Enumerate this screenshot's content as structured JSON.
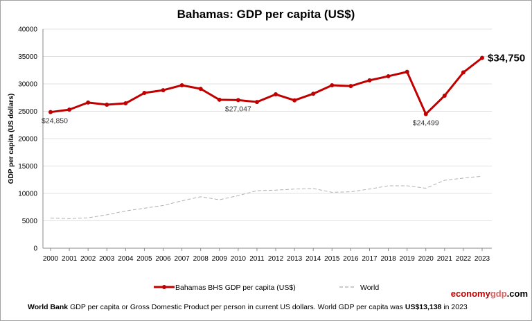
{
  "chart_data": {
    "type": "line",
    "title": "Bahamas: GDP per capita (US$)",
    "ylabel": "GDP per capita (US dollars)",
    "xlabel": "",
    "ylim": [
      0,
      40000
    ],
    "yticks": [
      0,
      5000,
      10000,
      15000,
      20000,
      25000,
      30000,
      35000,
      40000
    ],
    "grid": true,
    "legend_placement": "bottom",
    "x": [
      2000,
      2001,
      2002,
      2003,
      2004,
      2005,
      2006,
      2007,
      2008,
      2009,
      2010,
      2011,
      2012,
      2013,
      2014,
      2015,
      2016,
      2017,
      2018,
      2019,
      2020,
      2021,
      2022,
      2023
    ],
    "series": [
      {
        "name": "Bahamas BHS GDP per capita (US$)",
        "color": "#c00000",
        "style": "solid-markers",
        "values": [
          24850,
          25300,
          26600,
          26200,
          26450,
          28350,
          28850,
          29750,
          29100,
          27100,
          27047,
          26700,
          28100,
          27000,
          28200,
          29750,
          29600,
          30650,
          31400,
          32200,
          24499,
          27850,
          32100,
          34750
        ]
      },
      {
        "name": "World",
        "color": "#b0b0b0",
        "style": "dashed",
        "values": [
          5500,
          5400,
          5550,
          6100,
          6800,
          7300,
          7800,
          8650,
          9400,
          8850,
          9600,
          10500,
          10600,
          10800,
          10900,
          10200,
          10300,
          10800,
          11400,
          11400,
          10950,
          12400,
          12800,
          13138
        ]
      }
    ],
    "annotations": [
      {
        "x": 2000,
        "text": "$24,850"
      },
      {
        "x": 2010,
        "text": "$27,047"
      },
      {
        "x": 2020,
        "text": "$24,499"
      },
      {
        "x": 2023,
        "text": "$34,750"
      }
    ]
  },
  "footer": {
    "source": "World Bank",
    "text": " GDP per capita or Gross Domestic Product per person in current US dollars.   World GDP per capita was ",
    "world_value": "US$13,138",
    "year_text": " in 2023"
  },
  "brand": {
    "part1": "economy",
    "part2": "gdp",
    "part3": ".com"
  }
}
